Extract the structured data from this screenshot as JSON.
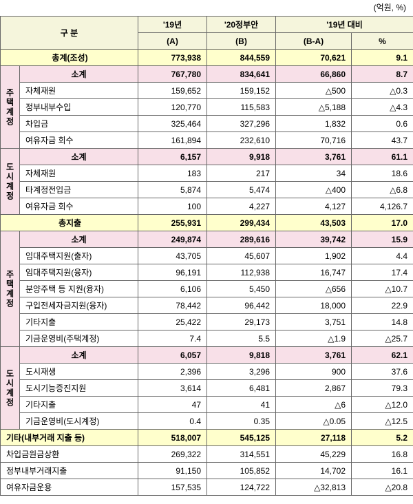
{
  "unit_label": "(억원, %)",
  "headers": {
    "category": "구    분",
    "y19": "'19년",
    "y19_sub": "(A)",
    "y20": "'20정부안",
    "y20_sub": "(B)",
    "diff": "'19년 대비",
    "diff_amt": "(B-A)",
    "diff_pct": "%"
  },
  "rows": {
    "total_rev": {
      "label": "총계(조성)",
      "a": "773,938",
      "b": "844,559",
      "d": "70,621",
      "p": "9.1"
    },
    "h_sub": {
      "label": "소계",
      "a": "767,780",
      "b": "834,641",
      "d": "66,860",
      "p": "8.7"
    },
    "h_own": {
      "label": "자체재원",
      "a": "159,652",
      "b": "159,152",
      "d": "△500",
      "p": "△0.3"
    },
    "h_gov": {
      "label": "정부내부수입",
      "a": "120,770",
      "b": "115,583",
      "d": "△5,188",
      "p": "△4.3"
    },
    "h_borrow": {
      "label": "차입금",
      "a": "325,464",
      "b": "327,296",
      "d": "1,832",
      "p": "0.6"
    },
    "h_reserve": {
      "label": "여유자금 회수",
      "a": "161,894",
      "b": "232,610",
      "d": "70,716",
      "p": "43.7"
    },
    "c_sub": {
      "label": "소계",
      "a": "6,157",
      "b": "9,918",
      "d": "3,761",
      "p": "61.1"
    },
    "c_own": {
      "label": "자체재원",
      "a": "183",
      "b": "217",
      "d": "34",
      "p": "18.6"
    },
    "c_trans": {
      "label": "타계정전입금",
      "a": "5,874",
      "b": "5,474",
      "d": "△400",
      "p": "△6.8"
    },
    "c_reserve": {
      "label": "여유자금 회수",
      "a": "100",
      "b": "4,227",
      "d": "4,127",
      "p": "4,126.7"
    },
    "total_exp": {
      "label": "총지출",
      "a": "255,931",
      "b": "299,434",
      "d": "43,503",
      "p": "17.0"
    },
    "h2_sub": {
      "label": "소계",
      "a": "249,874",
      "b": "289,616",
      "d": "39,742",
      "p": "15.9"
    },
    "h2_1": {
      "label": "임대주택지원(출자)",
      "a": "43,705",
      "b": "45,607",
      "d": "1,902",
      "p": "4.4"
    },
    "h2_2": {
      "label": "임대주택지원(융자)",
      "a": "96,191",
      "b": "112,938",
      "d": "16,747",
      "p": "17.4"
    },
    "h2_3": {
      "label": "분양주택 등 지원(융자)",
      "a": "6,106",
      "b": "5,450",
      "d": "△656",
      "p": "△10.7"
    },
    "h2_4": {
      "label": "구입전세자금지원(융자)",
      "a": "78,442",
      "b": "96,442",
      "d": "18,000",
      "p": "22.9"
    },
    "h2_5": {
      "label": "기타지출",
      "a": "25,422",
      "b": "29,173",
      "d": "3,751",
      "p": "14.8"
    },
    "h2_6": {
      "label": "기금운영비(주택계정)",
      "a": "7.4",
      "b": "5.5",
      "d": "△1.9",
      "p": "△25.7"
    },
    "c2_sub": {
      "label": "소계",
      "a": "6,057",
      "b": "9,818",
      "d": "3,761",
      "p": "62.1"
    },
    "c2_1": {
      "label": "도시재생",
      "a": "2,396",
      "b": "3,296",
      "d": "900",
      "p": "37.6"
    },
    "c2_2": {
      "label": "도시기능증진지원",
      "a": "3,614",
      "b": "6,481",
      "d": "2,867",
      "p": "79.3"
    },
    "c2_3": {
      "label": "기타지출",
      "a": "47",
      "b": "41",
      "d": "△6",
      "p": "△12.0"
    },
    "c2_4": {
      "label": "기금운영비(도시계정)",
      "a": "0.4",
      "b": "0.35",
      "d": "△0.05",
      "p": "△12.5"
    },
    "etc": {
      "label": "기타(내부거래 지출 등)",
      "a": "518,007",
      "b": "545,125",
      "d": "27,118",
      "p": "5.2"
    },
    "b1": {
      "label": "차입금원금상환",
      "a": "269,322",
      "b": "314,551",
      "d": "45,229",
      "p": "16.8"
    },
    "b2": {
      "label": "정부내부거래지출",
      "a": "91,150",
      "b": "105,852",
      "d": "14,702",
      "p": "16.1"
    },
    "b3": {
      "label": "여유자금운용",
      "a": "157,535",
      "b": "124,722",
      "d": "△32,813",
      "p": "△20.8"
    }
  },
  "vlabels": {
    "h1": "주택계정",
    "c1": "도시계정",
    "h2": "주택계정",
    "c2": "도시계정"
  }
}
